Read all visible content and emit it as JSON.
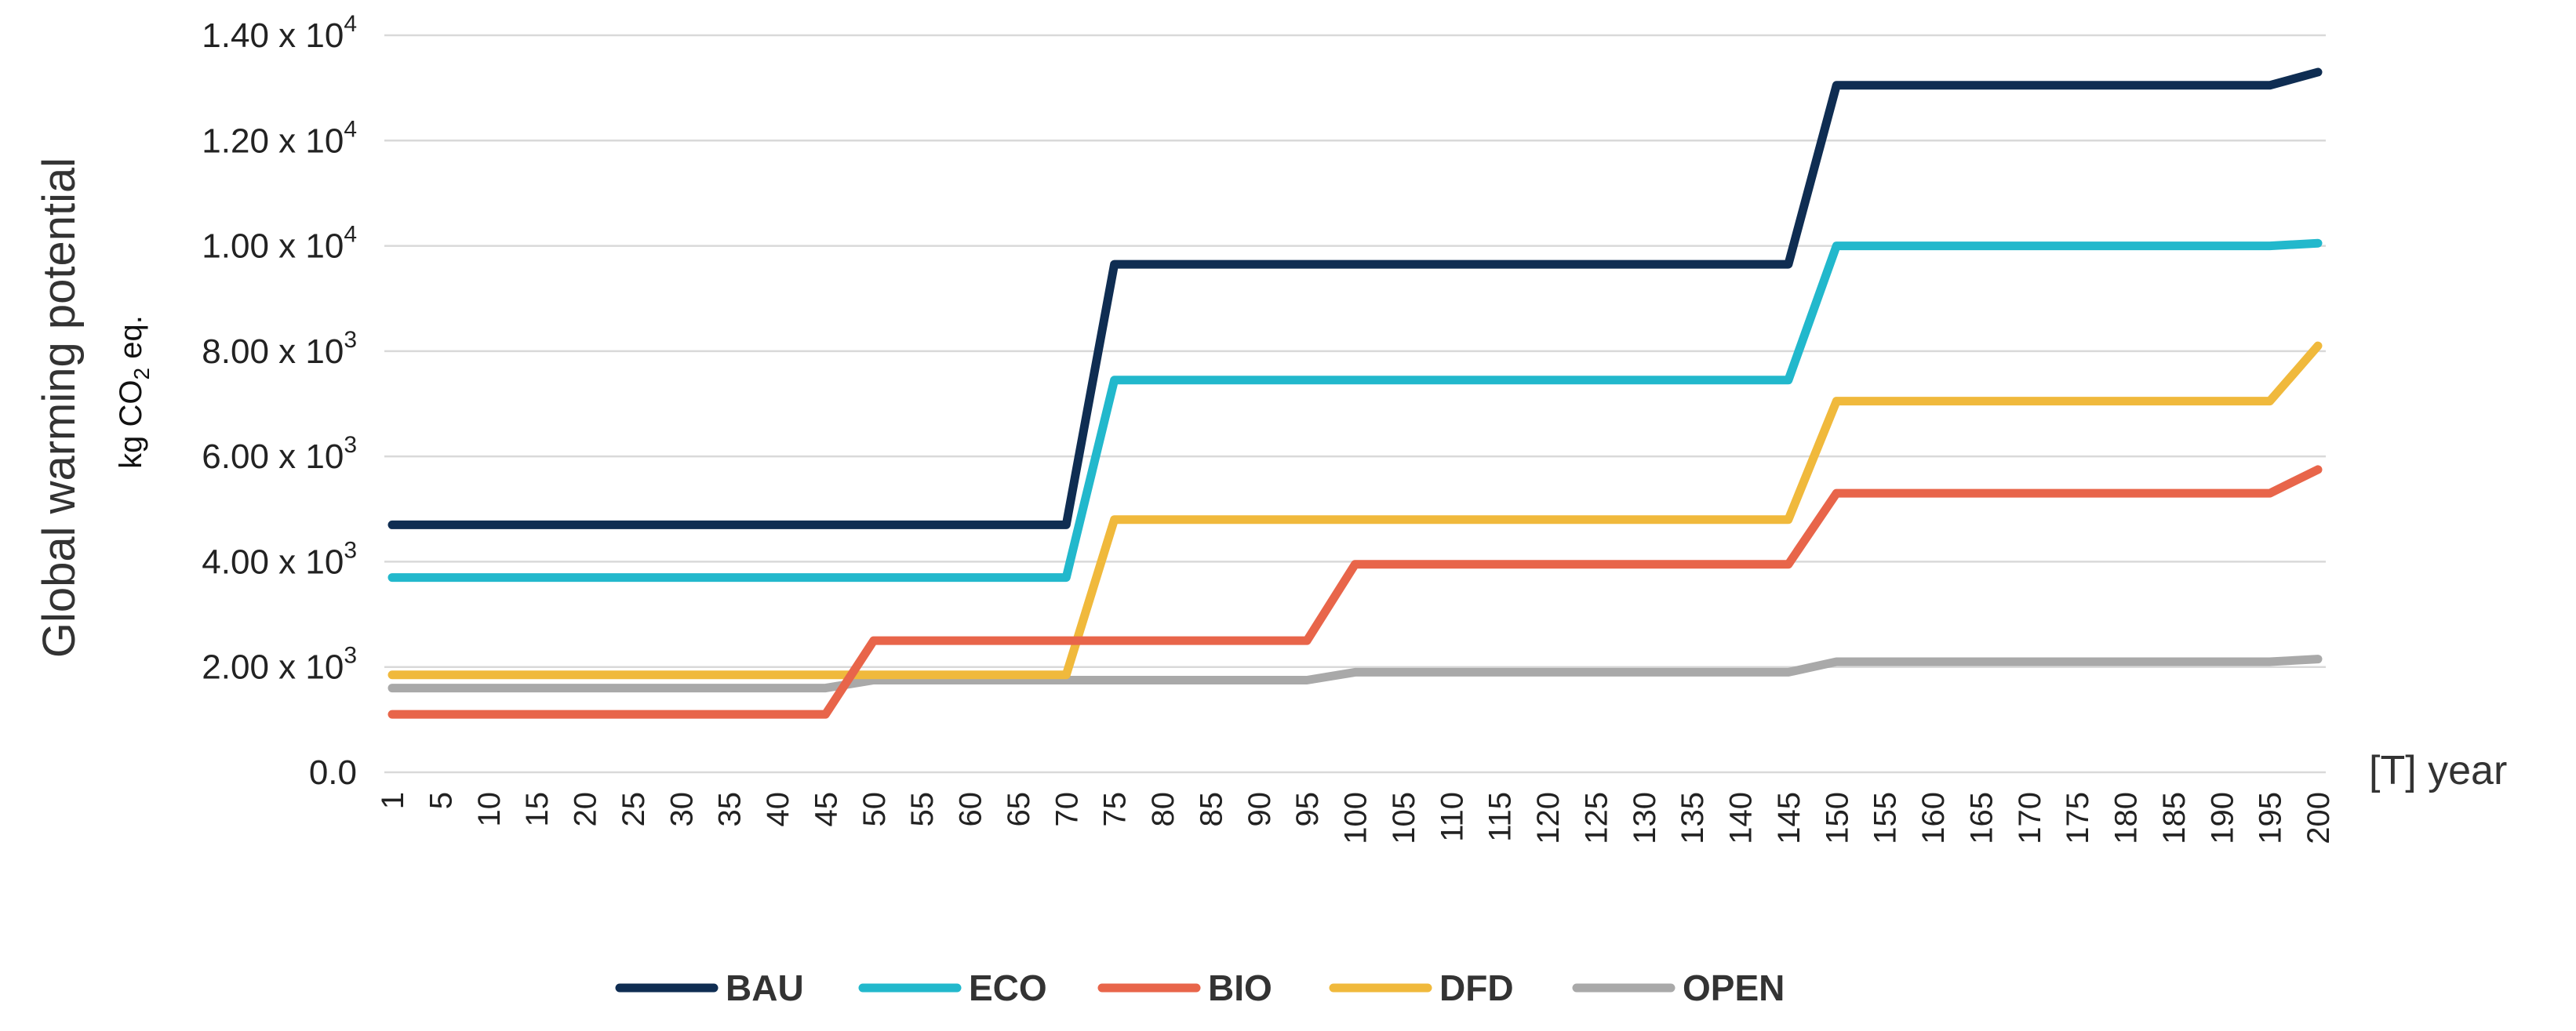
{
  "chart_data": {
    "type": "line",
    "ylabel": "Global warming potential",
    "yunit_label": "kg CO2 eq.",
    "xlabel": "[T] year",
    "ylim": [
      0,
      14000
    ],
    "y_tick_labels": [
      {
        "value": 0,
        "mantissa": "0.0",
        "exp": ""
      },
      {
        "value": 2000,
        "mantissa": "2.00 x 10",
        "exp": "3"
      },
      {
        "value": 4000,
        "mantissa": "4.00 x 10",
        "exp": "3"
      },
      {
        "value": 6000,
        "mantissa": "6.00 x 10",
        "exp": "3"
      },
      {
        "value": 8000,
        "mantissa": "8.00 x 10",
        "exp": "3"
      },
      {
        "value": 10000,
        "mantissa": "1.00 x 10",
        "exp": "4"
      },
      {
        "value": 12000,
        "mantissa": "1.20 x 10",
        "exp": "4"
      },
      {
        "value": 14000,
        "mantissa": "1.40 x 10",
        "exp": "4"
      }
    ],
    "grid": true,
    "legend_position": "bottom",
    "categories": [
      "1",
      "5",
      "10",
      "15",
      "20",
      "25",
      "30",
      "35",
      "40",
      "45",
      "50",
      "55",
      "60",
      "65",
      "70",
      "75",
      "80",
      "85",
      "90",
      "95",
      "100",
      "105",
      "110",
      "115",
      "120",
      "125",
      "130",
      "135",
      "140",
      "145",
      "150",
      "155",
      "160",
      "165",
      "170",
      "175",
      "180",
      "185",
      "190",
      "195",
      "200"
    ],
    "series": [
      {
        "name": "BAU",
        "color": "#0f2d52",
        "values": [
          4700,
          4700,
          4700,
          4700,
          4700,
          4700,
          4700,
          4700,
          4700,
          4700,
          4700,
          4700,
          4700,
          4700,
          4700,
          9650,
          9650,
          9650,
          9650,
          9650,
          9650,
          9650,
          9650,
          9650,
          9650,
          9650,
          9650,
          9650,
          9650,
          9650,
          13050,
          13050,
          13050,
          13050,
          13050,
          13050,
          13050,
          13050,
          13050,
          13050,
          13300
        ]
      },
      {
        "name": "ECO",
        "color": "#22b8cc",
        "values": [
          3700,
          3700,
          3700,
          3700,
          3700,
          3700,
          3700,
          3700,
          3700,
          3700,
          3700,
          3700,
          3700,
          3700,
          3700,
          7450,
          7450,
          7450,
          7450,
          7450,
          7450,
          7450,
          7450,
          7450,
          7450,
          7450,
          7450,
          7450,
          7450,
          7450,
          10000,
          10000,
          10000,
          10000,
          10000,
          10000,
          10000,
          10000,
          10000,
          10000,
          10050
        ]
      },
      {
        "name": "BIO",
        "color": "#e8654a",
        "values": [
          1100,
          1100,
          1100,
          1100,
          1100,
          1100,
          1100,
          1100,
          1100,
          1100,
          2500,
          2500,
          2500,
          2500,
          2500,
          2500,
          2500,
          2500,
          2500,
          2500,
          3950,
          3950,
          3950,
          3950,
          3950,
          3950,
          3950,
          3950,
          3950,
          3950,
          5300,
          5300,
          5300,
          5300,
          5300,
          5300,
          5300,
          5300,
          5300,
          5300,
          5750
        ]
      },
      {
        "name": "DFD",
        "color": "#f0b93c",
        "values": [
          1850,
          1850,
          1850,
          1850,
          1850,
          1850,
          1850,
          1850,
          1850,
          1850,
          1850,
          1850,
          1850,
          1850,
          1850,
          4800,
          4800,
          4800,
          4800,
          4800,
          4800,
          4800,
          4800,
          4800,
          4800,
          4800,
          4800,
          4800,
          4800,
          4800,
          7050,
          7050,
          7050,
          7050,
          7050,
          7050,
          7050,
          7050,
          7050,
          7050,
          8100
        ]
      },
      {
        "name": "OPEN",
        "color": "#a9a9a9",
        "values": [
          1600,
          1600,
          1600,
          1600,
          1600,
          1600,
          1600,
          1600,
          1600,
          1600,
          1750,
          1750,
          1750,
          1750,
          1750,
          1750,
          1750,
          1750,
          1750,
          1750,
          1900,
          1900,
          1900,
          1900,
          1900,
          1900,
          1900,
          1900,
          1900,
          1900,
          2100,
          2100,
          2100,
          2100,
          2100,
          2100,
          2100,
          2100,
          2100,
          2100,
          2150
        ]
      }
    ]
  }
}
